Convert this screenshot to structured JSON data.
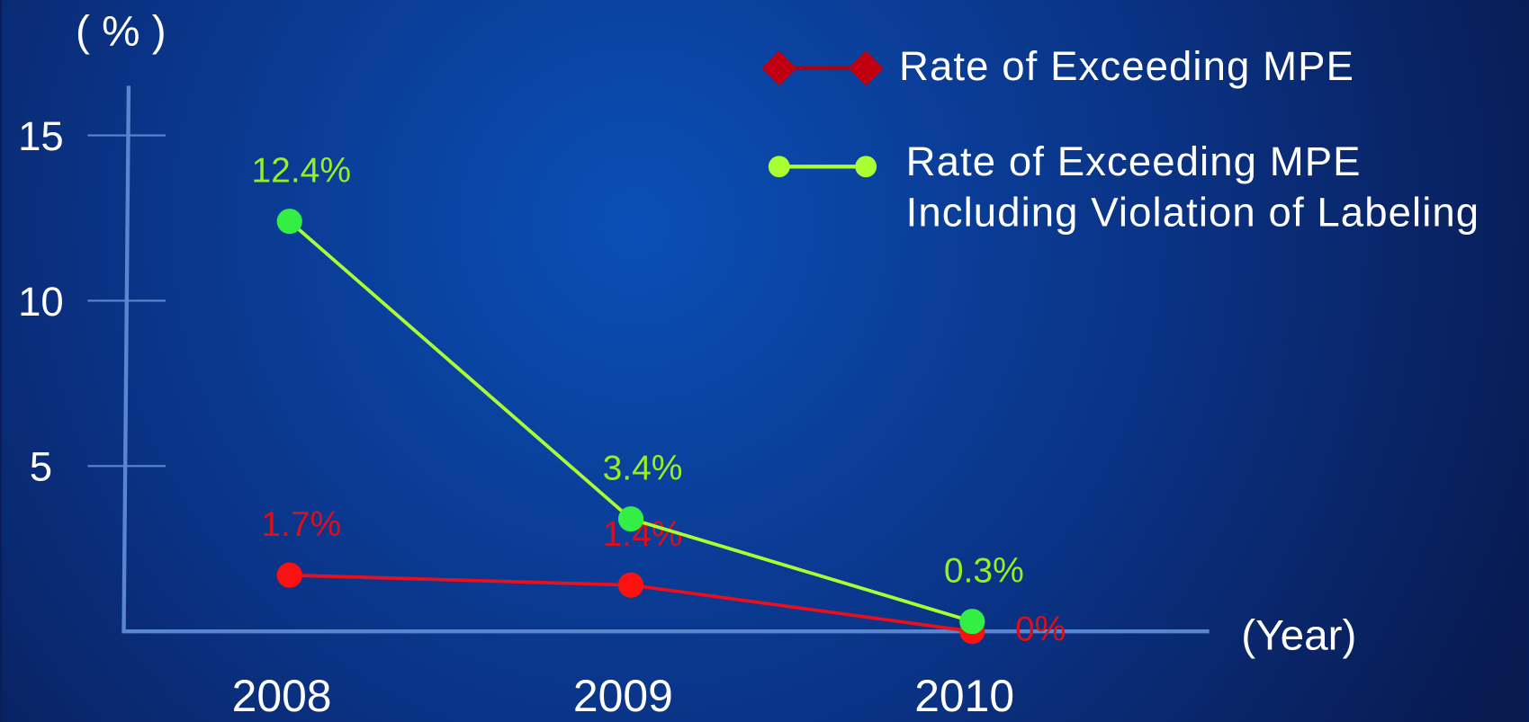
{
  "chart_data": {
    "type": "line",
    "y_label": "( % )",
    "x_label": "(Year)",
    "categories": [
      "2008",
      "2009",
      "2010"
    ],
    "series": [
      {
        "name": "Rate of Exceeding MPE",
        "color": "#e8101c",
        "marker": "diamond",
        "values": [
          1.7,
          1.4,
          0
        ],
        "value_labels": [
          "1.7%",
          "1.4%",
          "0%"
        ]
      },
      {
        "name": "Rate of Exceeding MPE\nIncluding Violation of Labeling",
        "color": "#aaff33",
        "marker": "circle",
        "values": [
          12.4,
          3.4,
          0.3
        ],
        "value_labels": [
          "12.4%",
          "3.4%",
          "0.3%"
        ]
      }
    ],
    "ylim": [
      0,
      16.5
    ],
    "yticks": [
      5,
      10,
      15
    ]
  }
}
